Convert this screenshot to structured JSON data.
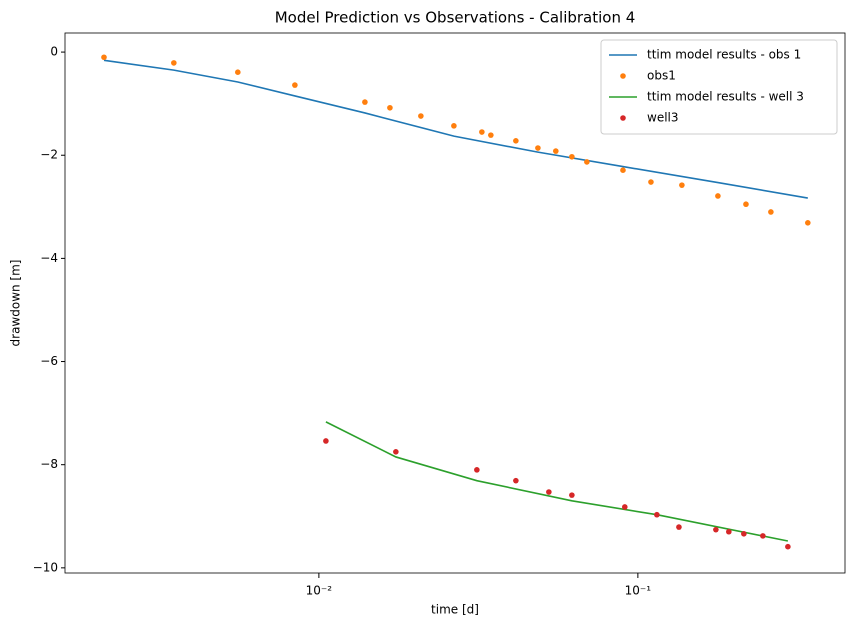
{
  "chart_data": {
    "type": "line",
    "title": "Model Prediction vs Observations - Calibration 4",
    "xlabel": "time [d]",
    "ylabel": "drawdown [m]",
    "xscale": "log",
    "xlim": [
      0.0016,
      0.446
    ],
    "ylim": [
      -10.1,
      0.37
    ],
    "xticks": [
      {
        "value": 0.01,
        "label": "10⁻²"
      },
      {
        "value": 0.1,
        "label": "10⁻¹"
      }
    ],
    "yticks": [
      {
        "value": 0,
        "label": "0"
      },
      {
        "value": -2,
        "label": "−2"
      },
      {
        "value": -4,
        "label": "−4"
      },
      {
        "value": -6,
        "label": "−6"
      },
      {
        "value": -8,
        "label": "−8"
      },
      {
        "value": -10,
        "label": "−10"
      }
    ],
    "legend": "upper right",
    "series": [
      {
        "name": "ttim model results - obs 1",
        "color": "#1f77b4",
        "style": "line",
        "x": [
          0.00212,
          0.00351,
          0.00557,
          0.00841,
          0.01394,
          0.0265,
          0.0486,
          0.0898,
          0.1782,
          0.341
        ],
        "values": [
          -0.16,
          -0.35,
          -0.58,
          -0.85,
          -1.18,
          -1.63,
          -1.94,
          -2.22,
          -2.53,
          -2.83
        ]
      },
      {
        "name": "obs1",
        "color": "#ff7f0e",
        "style": "marker",
        "x": [
          0.00212,
          0.00351,
          0.00557,
          0.00841,
          0.01394,
          0.0167,
          0.02088,
          0.0265,
          0.03243,
          0.0346,
          0.04145,
          0.0486,
          0.0553,
          0.0621,
          0.0692,
          0.0898,
          0.1099,
          0.1374,
          0.1782,
          0.2182,
          0.2612,
          0.341
        ],
        "values": [
          -0.1,
          -0.21,
          -0.39,
          -0.64,
          -0.97,
          -1.08,
          -1.24,
          -1.43,
          -1.55,
          -1.61,
          -1.72,
          -1.86,
          -1.92,
          -2.03,
          -2.13,
          -2.29,
          -2.52,
          -2.58,
          -2.79,
          -2.95,
          -3.1,
          -3.31
        ]
      },
      {
        "name": "ttim model results - well 3",
        "color": "#2ca02c",
        "style": "line",
        "x": [
          0.01052,
          0.01743,
          0.03128,
          0.0621,
          0.1147,
          0.2953
        ],
        "values": [
          -7.17,
          -7.85,
          -8.31,
          -8.7,
          -8.97,
          -9.48
        ]
      },
      {
        "name": "well3",
        "color": "#d62728",
        "style": "marker",
        "x": [
          0.01052,
          0.01743,
          0.03128,
          0.04145,
          0.0526,
          0.0621,
          0.091,
          0.1147,
          0.1345,
          0.1756,
          0.1928,
          0.2149,
          0.2465,
          0.2953
        ],
        "values": [
          -7.54,
          -7.75,
          -8.1,
          -8.31,
          -8.53,
          -8.59,
          -8.82,
          -8.97,
          -9.21,
          -9.26,
          -9.3,
          -9.34,
          -9.38,
          -9.59
        ]
      }
    ]
  }
}
